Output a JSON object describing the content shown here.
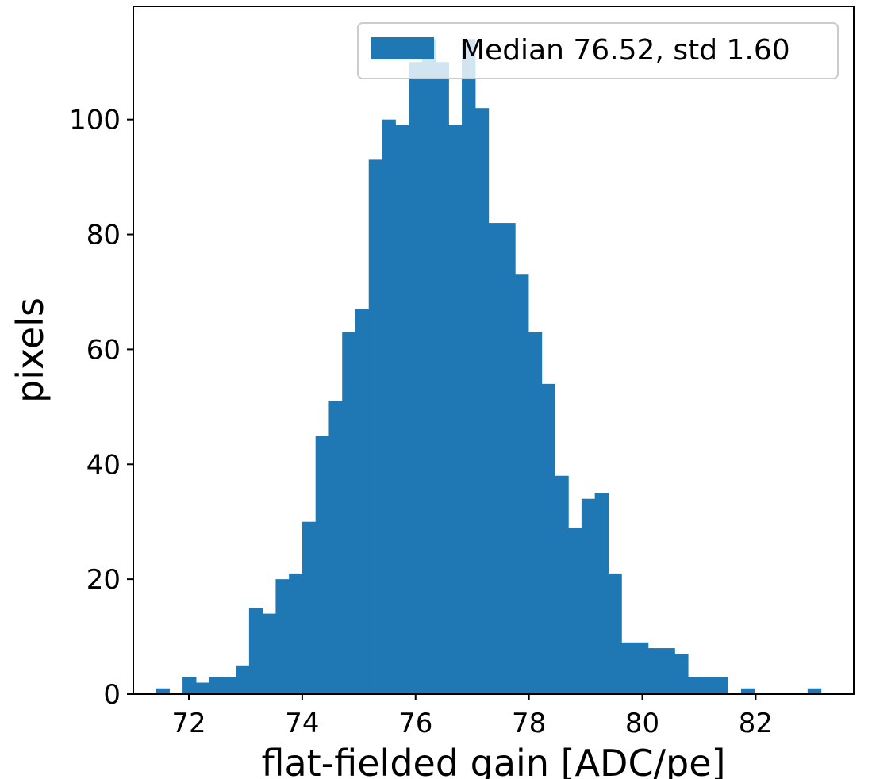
{
  "chart_data": {
    "type": "bar",
    "title": "",
    "xlabel": "flat-fielded gain [ADC/pe]",
    "ylabel": "pixels",
    "xlim": [
      71.02,
      83.73
    ],
    "ylim": [
      0,
      119.7
    ],
    "xticks": [
      72,
      74,
      76,
      78,
      80,
      82
    ],
    "yticks": [
      0,
      20,
      40,
      60,
      80,
      100
    ],
    "bin_start": 71.42,
    "bin_width": 0.2346,
    "values": [
      1,
      0,
      3,
      2,
      3,
      3,
      5,
      15,
      14,
      20,
      21,
      30,
      45,
      51,
      63,
      67,
      93,
      100,
      99,
      110,
      114,
      110,
      99,
      114,
      102,
      82,
      82,
      73,
      63,
      54,
      38,
      29,
      34,
      35,
      21,
      9,
      9,
      8,
      8,
      7,
      3,
      3,
      3,
      0,
      1,
      0,
      0,
      0,
      0,
      1
    ],
    "series": [
      {
        "name": "Median 76.52, std 1.60",
        "color": "#1f77b4"
      }
    ],
    "grid": false,
    "legend_position": "top-right"
  },
  "colors": {
    "bar": "#1f77b4",
    "axis": "#000000",
    "background": "#ffffff"
  }
}
